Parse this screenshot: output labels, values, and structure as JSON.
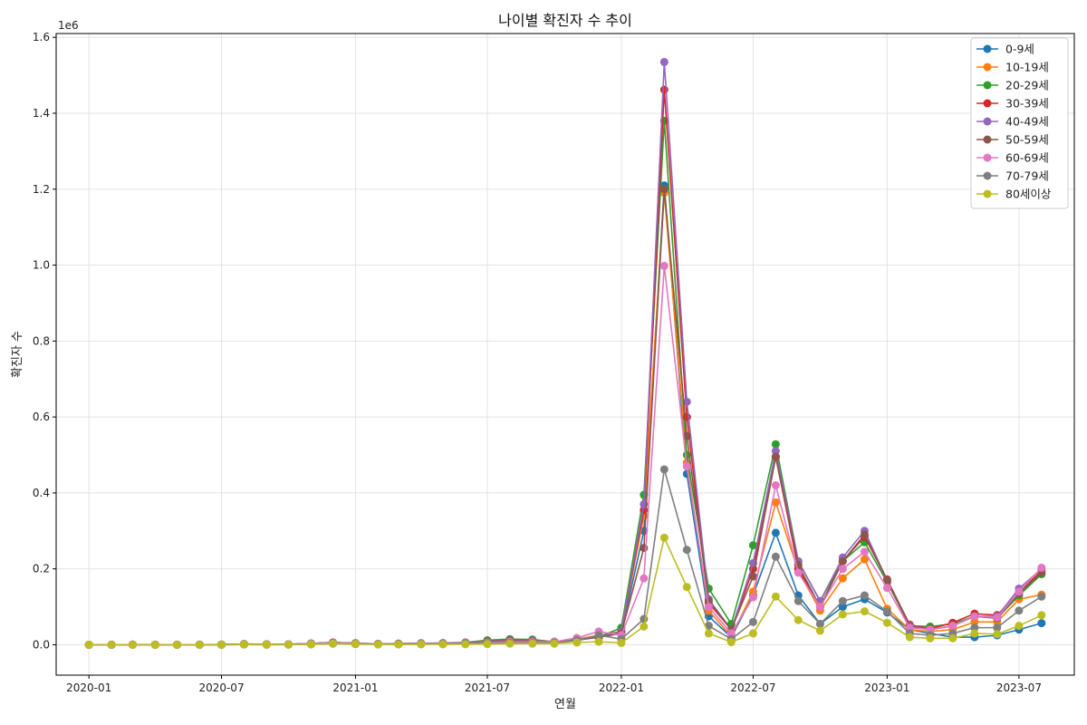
{
  "chart_data": {
    "type": "line",
    "title": "나이별 확진자 수 추이",
    "xlabel": "연월",
    "ylabel": "확진자 수",
    "y_offset_text": "1e6",
    "ylim": [
      -0.08,
      1.61
    ],
    "xlim": [
      "2019-11-17",
      "2023-09-15"
    ],
    "grid": true,
    "legend_position": "top-right",
    "x": [
      "2020-01",
      "2020-02",
      "2020-03",
      "2020-04",
      "2020-05",
      "2020-06",
      "2020-07",
      "2020-08",
      "2020-09",
      "2020-10",
      "2020-11",
      "2020-12",
      "2021-01",
      "2021-02",
      "2021-03",
      "2021-04",
      "2021-05",
      "2021-06",
      "2021-07",
      "2021-08",
      "2021-09",
      "2021-10",
      "2021-11",
      "2021-12",
      "2022-01",
      "2022-02",
      "2022-03",
      "2022-04",
      "2022-05",
      "2022-06",
      "2022-07",
      "2022-08",
      "2022-09",
      "2022-10",
      "2022-11",
      "2022-12",
      "2023-01",
      "2023-02",
      "2023-03",
      "2023-04",
      "2023-05",
      "2023-06",
      "2023-07",
      "2023-08"
    ],
    "x_ticks": [
      "2020-01",
      "2020-07",
      "2021-01",
      "2021-07",
      "2022-01",
      "2022-07",
      "2023-01",
      "2023-07"
    ],
    "y_ticks": [
      0.0,
      0.2,
      0.4,
      0.6,
      0.8,
      1.0,
      1.2,
      1.4,
      1.6
    ],
    "y_tick_labels": [
      "0.0",
      "0.2",
      "0.4",
      "0.6",
      "0.8",
      "1.0",
      "1.2",
      "1.4",
      "1.6"
    ],
    "series": [
      {
        "name": "0-9세",
        "color": "#1f77b4",
        "values": [
          0,
          0.0001,
          0.0002,
          0.0001,
          0.0001,
          0.0002,
          0.0003,
          0.0008,
          0.0005,
          0.0006,
          0.0012,
          0.003,
          0.002,
          0.0012,
          0.0015,
          0.002,
          0.002,
          0.003,
          0.005,
          0.008,
          0.008,
          0.006,
          0.012,
          0.02,
          0.03,
          0.3,
          1.21,
          0.45,
          0.075,
          0.02,
          0.13,
          0.295,
          0.13,
          0.055,
          0.1,
          0.12,
          0.085,
          0.04,
          0.03,
          0.02,
          0.02,
          0.025,
          0.04,
          0.057
        ]
      },
      {
        "name": "10-19세",
        "color": "#ff7f0e",
        "values": [
          0,
          0.0001,
          0.0003,
          0.0001,
          0.0001,
          0.0002,
          0.0003,
          0.0012,
          0.0006,
          0.0007,
          0.0018,
          0.0035,
          0.003,
          0.0015,
          0.0018,
          0.0025,
          0.0025,
          0.004,
          0.007,
          0.01,
          0.011,
          0.008,
          0.015,
          0.025,
          0.035,
          0.34,
          1.19,
          0.48,
          0.09,
          0.022,
          0.14,
          0.375,
          0.195,
          0.09,
          0.175,
          0.225,
          0.095,
          0.04,
          0.035,
          0.04,
          0.06,
          0.06,
          0.12,
          0.132
        ]
      },
      {
        "name": "20-29세",
        "color": "#2ca02c",
        "values": [
          0,
          0.0002,
          0.0006,
          0.0003,
          0.0004,
          0.0005,
          0.0006,
          0.002,
          0.0014,
          0.0013,
          0.0035,
          0.006,
          0.004,
          0.0025,
          0.003,
          0.004,
          0.0045,
          0.006,
          0.012,
          0.015,
          0.014,
          0.008,
          0.014,
          0.02,
          0.045,
          0.395,
          1.38,
          0.5,
          0.148,
          0.055,
          0.262,
          0.528,
          0.22,
          0.115,
          0.22,
          0.27,
          0.165,
          0.05,
          0.048,
          0.055,
          0.075,
          0.07,
          0.13,
          0.186
        ]
      },
      {
        "name": "30-39세",
        "color": "#d62728",
        "values": [
          0,
          0.0002,
          0.0005,
          0.0003,
          0.0003,
          0.0004,
          0.0005,
          0.0018,
          0.0012,
          0.0012,
          0.003,
          0.006,
          0.004,
          0.0022,
          0.0028,
          0.0038,
          0.004,
          0.0055,
          0.009,
          0.012,
          0.011,
          0.008,
          0.014,
          0.02,
          0.035,
          0.355,
          1.462,
          0.6,
          0.11,
          0.04,
          0.2,
          0.495,
          0.2,
          0.1,
          0.22,
          0.285,
          0.172,
          0.053,
          0.042,
          0.058,
          0.082,
          0.078,
          0.138,
          0.195
        ]
      },
      {
        "name": "40-49세",
        "color": "#9467bd",
        "values": [
          0,
          0.0002,
          0.0005,
          0.0003,
          0.0003,
          0.0004,
          0.0005,
          0.0018,
          0.0012,
          0.0012,
          0.0035,
          0.006,
          0.004,
          0.0022,
          0.0028,
          0.0038,
          0.004,
          0.0055,
          0.009,
          0.012,
          0.011,
          0.008,
          0.014,
          0.02,
          0.035,
          0.37,
          1.535,
          0.64,
          0.12,
          0.04,
          0.215,
          0.51,
          0.22,
          0.115,
          0.23,
          0.3,
          0.17,
          0.05,
          0.04,
          0.05,
          0.075,
          0.075,
          0.148,
          0.2
        ]
      },
      {
        "name": "50-59세",
        "color": "#8c564b",
        "values": [
          0,
          0.0002,
          0.0004,
          0.0002,
          0.0002,
          0.0003,
          0.0004,
          0.0015,
          0.001,
          0.001,
          0.003,
          0.005,
          0.0035,
          0.002,
          0.0025,
          0.0035,
          0.0035,
          0.005,
          0.008,
          0.011,
          0.01,
          0.008,
          0.014,
          0.02,
          0.03,
          0.255,
          1.2,
          0.55,
          0.115,
          0.04,
          0.18,
          0.495,
          0.21,
          0.1,
          0.22,
          0.29,
          0.17,
          0.048,
          0.04,
          0.05,
          0.075,
          0.07,
          0.135,
          0.19
        ]
      },
      {
        "name": "60-69세",
        "color": "#e377c2",
        "values": [
          0,
          0.0001,
          0.0003,
          0.0002,
          0.0002,
          0.0003,
          0.0004,
          0.0014,
          0.0009,
          0.0009,
          0.0028,
          0.0045,
          0.003,
          0.0018,
          0.002,
          0.003,
          0.003,
          0.004,
          0.006,
          0.008,
          0.008,
          0.008,
          0.018,
          0.035,
          0.025,
          0.175,
          0.998,
          0.47,
          0.1,
          0.03,
          0.125,
          0.42,
          0.19,
          0.1,
          0.2,
          0.245,
          0.15,
          0.045,
          0.04,
          0.05,
          0.075,
          0.072,
          0.14,
          0.203
        ]
      },
      {
        "name": "70-79세",
        "color": "#7f7f7f",
        "values": [
          0,
          0.0001,
          0.0002,
          0.0001,
          0.0001,
          0.0002,
          0.0003,
          0.001,
          0.0007,
          0.0007,
          0.002,
          0.0035,
          0.0025,
          0.0015,
          0.0015,
          0.002,
          0.002,
          0.003,
          0.004,
          0.005,
          0.005,
          0.005,
          0.012,
          0.025,
          0.015,
          0.068,
          0.462,
          0.25,
          0.05,
          0.015,
          0.06,
          0.232,
          0.115,
          0.055,
          0.115,
          0.13,
          0.088,
          0.03,
          0.025,
          0.03,
          0.045,
          0.045,
          0.09,
          0.127
        ]
      },
      {
        "name": "80세이상",
        "color": "#bcbd22",
        "values": [
          0,
          0.0001,
          0.0001,
          0.0001,
          0.0001,
          0.0001,
          0.0002,
          0.0006,
          0.0005,
          0.0005,
          0.0015,
          0.003,
          0.002,
          0.001,
          0.001,
          0.0012,
          0.0012,
          0.0015,
          0.002,
          0.003,
          0.003,
          0.003,
          0.006,
          0.008,
          0.005,
          0.048,
          0.282,
          0.152,
          0.03,
          0.007,
          0.03,
          0.127,
          0.065,
          0.037,
          0.08,
          0.088,
          0.058,
          0.02,
          0.017,
          0.017,
          0.03,
          0.028,
          0.05,
          0.078
        ]
      }
    ]
  }
}
